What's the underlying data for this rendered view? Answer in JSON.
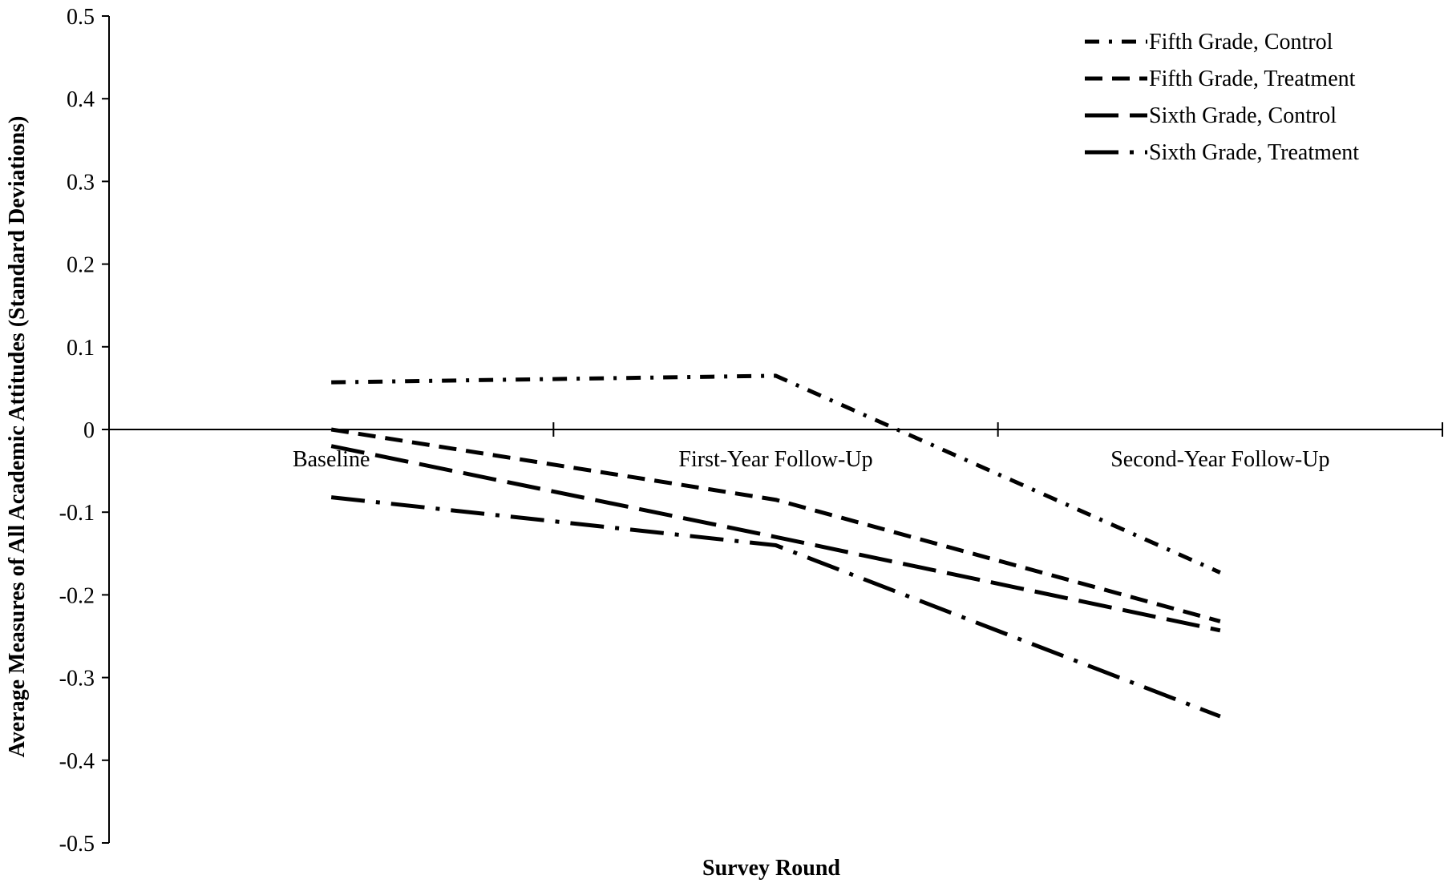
{
  "chart_data": {
    "type": "line",
    "title": "",
    "xlabel": "Survey Round",
    "ylabel": "Average Measures of All Academic Attitudes (Standard Deviations)",
    "categories": [
      "Baseline",
      "First-Year Follow-Up",
      "Second-Year Follow-Up"
    ],
    "ylim": [
      -0.5,
      0.5
    ],
    "yticks": [
      0.5,
      0.4,
      0.3,
      0.2,
      0.1,
      0,
      -0.1,
      -0.2,
      -0.3,
      -0.4,
      -0.5
    ],
    "ytick_labels": [
      "0.5",
      "0.4",
      "0.3",
      "0.2",
      "0.1",
      "0",
      "-0.1",
      "-0.2",
      "-0.3",
      "-0.4",
      "-0.5"
    ],
    "grid": false,
    "legend_position": "top-right",
    "series": [
      {
        "name": "Fifth Grade, Control",
        "values": [
          0.057,
          0.065,
          -0.173
        ],
        "dash": "dashdot"
      },
      {
        "name": "Fifth Grade, Treatment",
        "values": [
          0.0,
          -0.085,
          -0.232
        ],
        "dash": "dash"
      },
      {
        "name": "Sixth Grade, Control",
        "values": [
          -0.02,
          -0.13,
          -0.243
        ],
        "dash": "longdash"
      },
      {
        "name": "Sixth Grade, Treatment",
        "values": [
          -0.082,
          -0.14,
          -0.347
        ],
        "dash": "longdashdot"
      }
    ],
    "colors": {
      "line": "#000000",
      "background": "#ffffff"
    }
  }
}
